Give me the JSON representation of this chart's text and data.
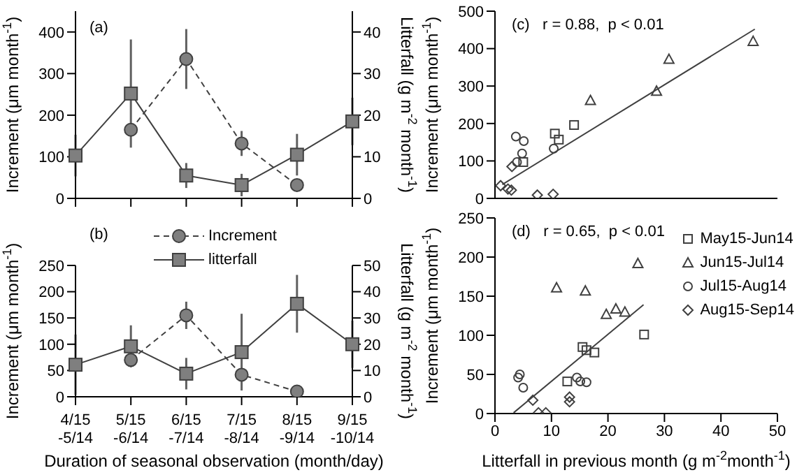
{
  "chart_data": [
    {
      "type": "line",
      "categories": [
        null,
        null,
        null,
        null,
        null,
        null
      ],
      "tick_labels": "y",
      "ylim": [
        0,
        450
      ],
      "yticks": [
        0,
        100,
        200,
        300,
        400
      ],
      "y2lim": [
        0,
        45
      ],
      "y2ticks": [
        0,
        10,
        20,
        30,
        40
      ],
      "ylabel": "Increment (μm month$^{-1}$)",
      "y2label": "Litterfall (g m$^{-2}$ month$^{-1}$)",
      "annotations": [
        "(a)"
      ],
      "legend": false,
      "series": [
        {
          "color": "#7f7f7f",
          "marker": "circle",
          "line_style": "dashed",
          "values": [
            null,
            165,
            335,
            132,
            32,
            null
          ],
          "errors": [
            null,
            null,
            72,
            30,
            null,
            null
          ]
        },
        {
          "color": "#7f7f7f",
          "marker": "square",
          "line_style": "solid",
          "axis": "y2",
          "values": [
            10.3,
            25.2,
            5.5,
            3.2,
            10.5,
            18.5
          ],
          "errors": [
            5,
            13,
            3,
            2.7,
            5,
            5.7
          ]
        }
      ]
    },
    {
      "type": "line",
      "categories": [
        "4/15\n-5/14",
        "5/15\n-6/14",
        "6/15\n-7/14",
        "7/15\n-8/14",
        "8/15\n-9/14",
        "9/15\n-10/14"
      ],
      "ylim": [
        0,
        250
      ],
      "yticks": [
        0,
        50,
        100,
        150,
        200,
        250
      ],
      "y2lim": [
        0,
        50
      ],
      "y2ticks": [
        0,
        10,
        20,
        30,
        40,
        50
      ],
      "ylabel": "Increment (μm month$^{-1}$)",
      "y2label": "Litterfall (g m$^{-2}$ month$^{-1}$)",
      "xlabel": "Duration of seasonal observation (month/day)",
      "annotations": [
        "(b)"
      ],
      "legend": "top",
      "series": [
        {
          "name": "Increment",
          "color": "#7f7f7f",
          "marker": "circle",
          "line_style": "dashed",
          "values": [
            null,
            70,
            155,
            42,
            10,
            null
          ],
          "errors": [
            null,
            null,
            26,
            null,
            null,
            null
          ]
        },
        {
          "name": "litterfall",
          "color": "#7f7f7f",
          "marker": "square",
          "line_style": "solid",
          "axis": "y2",
          "values": [
            12.2,
            19.2,
            8.8,
            17,
            35.4,
            20
          ],
          "errors": [
            11.5,
            8,
            6,
            14.6,
            11,
            9
          ]
        }
      ]
    },
    {
      "type": "scatter",
      "tick_labels": "y",
      "xlim": [
        0,
        50
      ],
      "xticks": [
        0,
        10,
        20,
        30,
        40,
        50
      ],
      "ylim": [
        0,
        500
      ],
      "yticks": [
        0,
        100,
        200,
        300,
        400,
        500
      ],
      "ylabel": "Increment (μm month$^{-1}$)",
      "annotations": [
        "(c)   r = 0.88,  p < 0.01"
      ],
      "legend": false,
      "series": [
        {
          "color": "#404040",
          "marker": "square",
          "x": [
            5.0,
            10.6,
            11.3,
            14.0
          ],
          "values": [
            97,
            173,
            157,
            196
          ]
        },
        {
          "color": "#404040",
          "marker": "triangle",
          "x": [
            16.9,
            28.6,
            30.8,
            45.7
          ],
          "values": [
            262,
            287,
            372,
            420
          ]
        },
        {
          "color": "#404040",
          "marker": "circle",
          "x": [
            3.7,
            5.1,
            4.8,
            3.9,
            10.4
          ],
          "values": [
            165,
            153,
            120,
            97,
            133
          ]
        },
        {
          "color": "#404040",
          "marker": "diamond",
          "x": [
            1.0,
            2.3,
            2.9,
            3.0,
            7.5,
            10.3
          ],
          "values": [
            34,
            25,
            22,
            85,
            9,
            11
          ]
        },
        {
          "type": "line",
          "color": "#404040",
          "marker": "none",
          "x": [
            1.3,
            46
          ],
          "values": [
            37,
            452
          ]
        }
      ]
    },
    {
      "type": "scatter",
      "xlim": [
        0,
        50
      ],
      "xticks": [
        0,
        10,
        20,
        30,
        40,
        50
      ],
      "ylim": [
        0,
        250
      ],
      "yticks": [
        0,
        50,
        100,
        150,
        200,
        250
      ],
      "ylabel": "Increment (μm month$^{-1}$)",
      "xlabel": "Litterfall in previous month  (g m$^{-2}$month$^{-1}$)",
      "annotations": [
        "(d)   r = 0.65,  p < 0.01"
      ],
      "legend": "top right",
      "series": [
        {
          "name": "May15-Jun14",
          "color": "#404040",
          "marker": "square",
          "x": [
            12.8,
            15.5,
            16.2,
            17.6,
            26.4
          ],
          "values": [
            41,
            85,
            81,
            78,
            101
          ]
        },
        {
          "name": "Jun15-Jul14",
          "color": "#404040",
          "marker": "triangle",
          "x": [
            10.9,
            16.0,
            19.7,
            21.4,
            23.0,
            25.3
          ],
          "values": [
            161,
            157,
            127,
            134,
            130,
            192
          ]
        },
        {
          "name": "Jul15-Aug14",
          "color": "#404040",
          "marker": "circle",
          "x": [
            4.4,
            4.1,
            5.0,
            14.5,
            15.1,
            16.2
          ],
          "values": [
            50,
            46,
            33,
            46,
            41,
            40
          ]
        },
        {
          "name": "Aug15-Sep14",
          "color": "#404040",
          "marker": "diamond",
          "x": [
            6.7,
            7.7,
            9.0,
            13.2,
            13.2
          ],
          "values": [
            17,
            1,
            1,
            21,
            15
          ]
        },
        {
          "type": "line",
          "color": "#404040",
          "marker": "none",
          "x": [
            3.3,
            26.3
          ],
          "values": [
            1,
            139
          ]
        }
      ]
    }
  ]
}
